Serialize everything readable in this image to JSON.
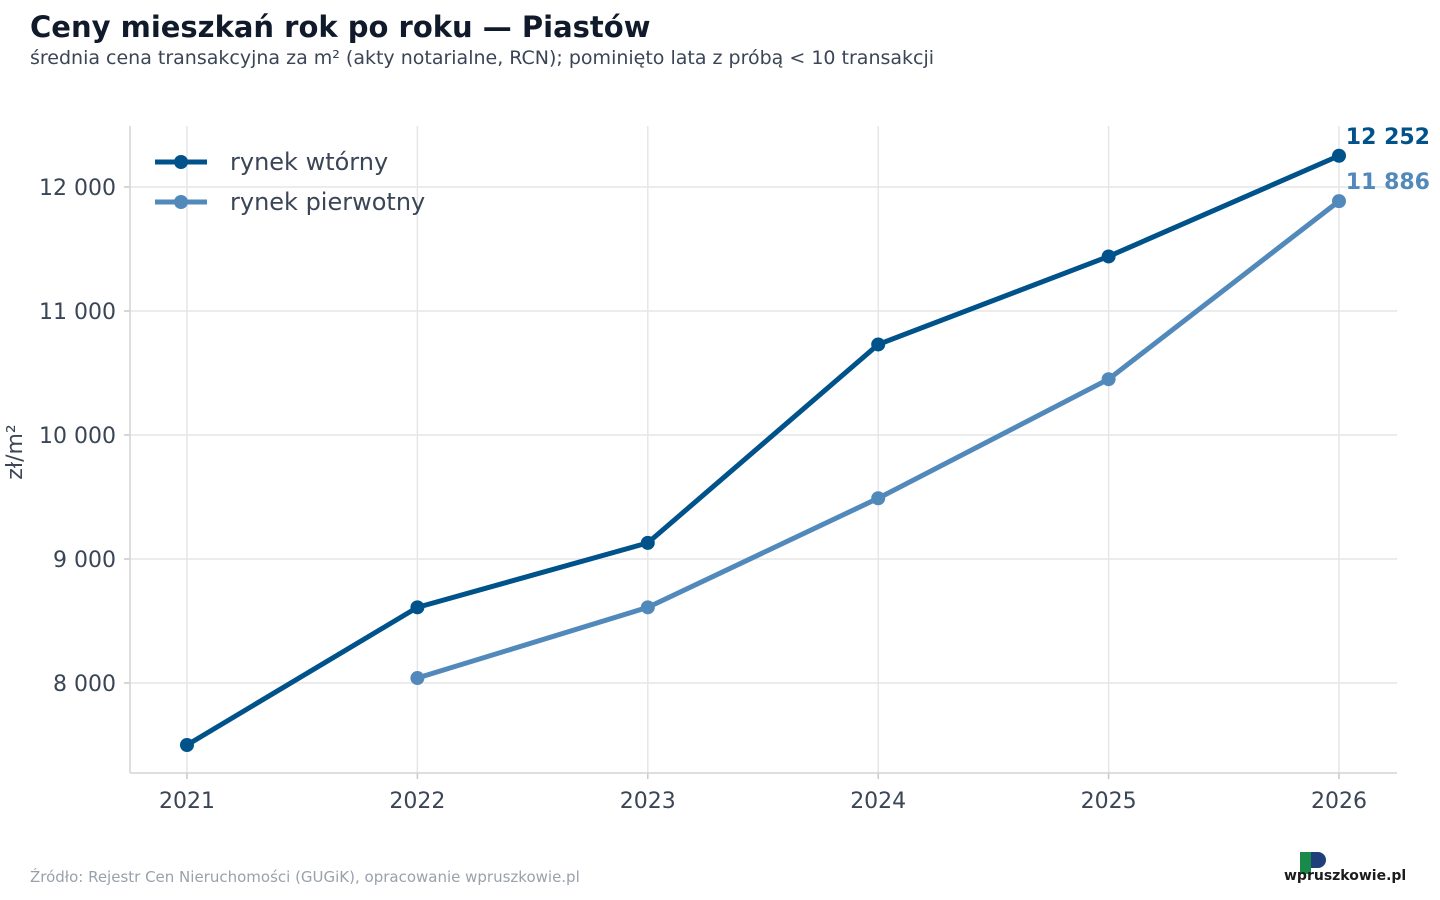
{
  "header": {
    "title": "Ceny mieszkań rok po roku — Piastów",
    "subtitle": "średnia cena transakcyjna za m² (akty notarialne, RCN); pominięto lata z próbą < 10 transakcji"
  },
  "footer": {
    "source": "Źródło: Rejestr Cen Nieruchomości (GUGiK), opracowanie wpruszkowie.pl",
    "logo_text": "wpruszkowie.pl"
  },
  "colors": {
    "secondary": "#00528a",
    "primary": "#5289bb",
    "grid": "#e6e6e6",
    "logo_green": "#1a8a4a",
    "logo_blue": "#1f3f7a"
  },
  "chart_data": {
    "type": "line",
    "title": "Ceny mieszkań rok po roku — Piastów",
    "xlabel": "",
    "ylabel": "zł/m²",
    "x": [
      2021,
      2022,
      2023,
      2024,
      2025,
      2026
    ],
    "x_tick_labels": [
      "2021",
      "2022",
      "2023",
      "2024",
      "2025",
      "2026"
    ],
    "ylim": [
      7300,
      12500
    ],
    "y_ticks": [
      8000,
      9000,
      10000,
      11000,
      12000
    ],
    "y_tick_labels": [
      "8 000",
      "9 000",
      "10 000",
      "11 000",
      "12 000"
    ],
    "grid": true,
    "legend_position": "top-left",
    "series": [
      {
        "name": "rynek wtórny",
        "color": "#00528a",
        "values": [
          7500,
          8610,
          9130,
          10730,
          11440,
          12252
        ],
        "end_label": "12 252"
      },
      {
        "name": "rynek pierwotny",
        "color": "#5289bb",
        "values": [
          null,
          8040,
          8610,
          9490,
          10450,
          11886
        ],
        "end_label": "11 886"
      }
    ]
  }
}
